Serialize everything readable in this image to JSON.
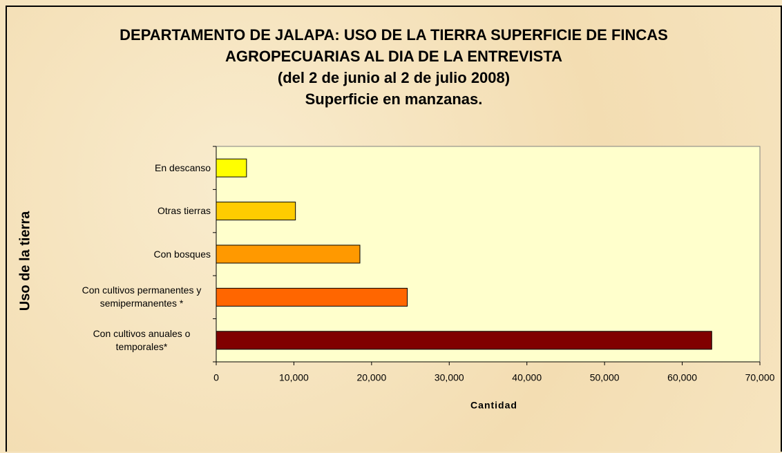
{
  "chart_data": {
    "type": "hbar",
    "title": "DEPARTAMENTO DE JALAPA: USO DE LA TIERRA SUPERFICIE DE FINCAS AGROPECUARIAS AL DIA DE LA ENTREVISTA",
    "subtitle": "(del 2 de junio al 2 de julio 2008)",
    "units_note": "Superficie en manzanas.",
    "x_label": "Cantidad",
    "y_label": "Uso de la tierra",
    "categories": [
      "En descanso",
      "Otras tierras",
      "Con bosques",
      "Con cultivos permanentes y semipermanentes *",
      "Con cultivos anuales o temporales*"
    ],
    "values": [
      3900,
      10200,
      18500,
      24600,
      63800
    ],
    "colors": [
      "#ffff00",
      "#ffcc00",
      "#ff9900",
      "#ff6600",
      "#800000"
    ],
    "xlim": [
      0,
      70000
    ],
    "xticks": [
      0,
      {
        "value": 10000,
        "label": "10,000"
      },
      {
        "value": 20000,
        "label": "20,000"
      },
      {
        "value": 30000,
        "label": "30,000"
      },
      {
        "value": 40000,
        "label": "40,000"
      },
      {
        "value": 50000,
        "label": "50,000"
      },
      {
        "value": 60000,
        "label": "60,000"
      },
      {
        "value": 70000,
        "label": "70,000"
      }
    ],
    "grid": false
  }
}
